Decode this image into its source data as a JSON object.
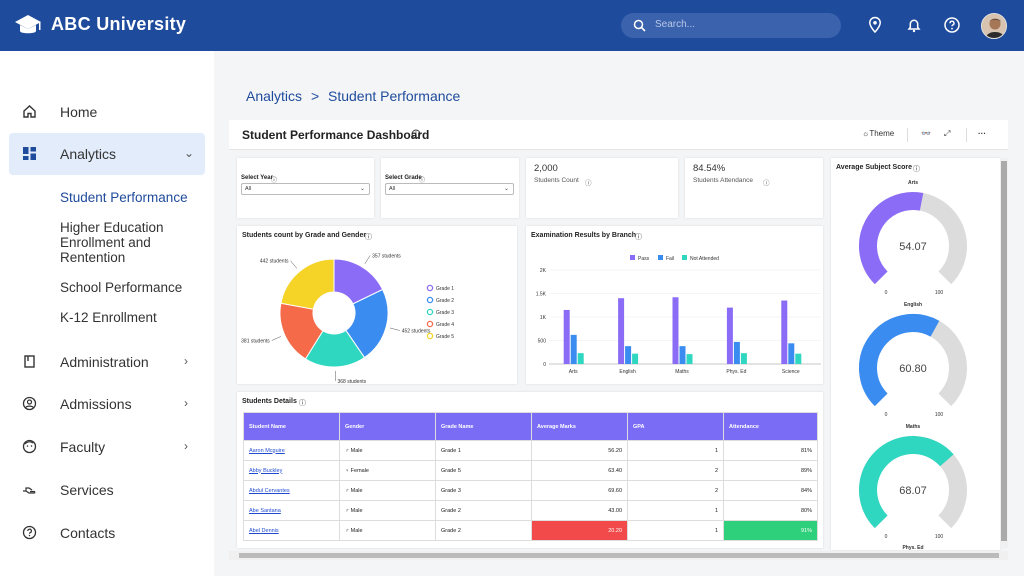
{
  "header": {
    "brand": "ABC University",
    "search_placeholder": "Search..."
  },
  "sidebar": {
    "items": [
      {
        "label": "Home"
      },
      {
        "label": "Analytics"
      },
      {
        "label": "Administration"
      },
      {
        "label": "Admissions"
      },
      {
        "label": "Faculty"
      },
      {
        "label": "Services"
      },
      {
        "label": "Contacts"
      }
    ],
    "analytics_sub": [
      "Student Performance",
      "Higher Education Enrollment and Rentention",
      "School Performance",
      "K-12 Enrollment"
    ]
  },
  "breadcrumb": {
    "parent": "Analytics",
    "sep": ">",
    "current": "Student Performance"
  },
  "dashboard": {
    "title": "Student Performance Dashboard",
    "theme_label": "Theme",
    "more": "···"
  },
  "filters": {
    "year": {
      "label": "Select Year",
      "value": "All"
    },
    "grade": {
      "label": "Select Grade",
      "value": "All"
    }
  },
  "kpis": {
    "count": {
      "value": "2,000",
      "label": "Students Count"
    },
    "attendance": {
      "value": "84.54%",
      "label": "Students Attendance"
    }
  },
  "pie": {
    "title": "Students count by Grade and Gender"
  },
  "bar": {
    "title": "Examination Results by Branch"
  },
  "gauges": {
    "title": "Average Subject Score"
  },
  "table": {
    "title": "Students Details",
    "headers": [
      "Student Name",
      "Gender",
      "Grade Name",
      "Average Marks",
      "GPA",
      "Attendance"
    ],
    "rows": [
      [
        "Aaron Mcguire",
        "Male",
        "Grade 1",
        "56.20",
        "1",
        "81%"
      ],
      [
        "Abby Buckley",
        "Female",
        "Grade 5",
        "63.40",
        "2",
        "89%"
      ],
      [
        "Abdul Cervantes",
        "Male",
        "Grade 3",
        "69.60",
        "2",
        "84%"
      ],
      [
        "Abe Santana",
        "Male",
        "Grade 2",
        "43.00",
        "1",
        "80%"
      ],
      [
        "Abel Dennis",
        "Male",
        "Grade 2",
        "20.20",
        "1",
        "91%"
      ]
    ]
  },
  "chart_data": [
    {
      "type": "pie",
      "title": "Students count by Grade and Gender",
      "categories": [
        "Grade 1",
        "Grade 2",
        "Grade 3",
        "Grade 4",
        "Grade 5"
      ],
      "values": [
        357,
        452,
        368,
        381,
        442
      ],
      "data_labels": [
        "357 students",
        "452 students",
        "368 students",
        "381 students",
        "442 students"
      ],
      "colors": [
        "#8b6cf6",
        "#3b8cf0",
        "#2fd6c0",
        "#f56b4a",
        "#f5d327"
      ],
      "legend": "right"
    },
    {
      "type": "bar",
      "title": "Examination Results by Branch",
      "categories": [
        "Arts",
        "English",
        "Maths",
        "Phys. Ed",
        "Science"
      ],
      "series": [
        {
          "name": "Pass",
          "values": [
            1150,
            1400,
            1420,
            1200,
            1350
          ],
          "color": "#8b6cf6"
        },
        {
          "name": "Fail",
          "values": [
            620,
            380,
            380,
            470,
            440
          ],
          "color": "#3b8cf0"
        },
        {
          "name": "Not Attended",
          "values": [
            230,
            220,
            210,
            230,
            220
          ],
          "color": "#2fd6c0"
        }
      ],
      "ylim": [
        0,
        2000
      ],
      "yticks": [
        "0",
        "500",
        "1K",
        "1.5K",
        "2K"
      ],
      "legend": "top"
    },
    {
      "type": "gauge",
      "title": "Average Subject Score",
      "gauges": [
        {
          "name": "Arts",
          "value": 54.07,
          "min": "0",
          "max": "100",
          "color": "#8b6cf6"
        },
        {
          "name": "English",
          "value": 60.8,
          "min": "0",
          "max": "100",
          "color": "#3b8cf0"
        },
        {
          "name": "Maths",
          "value": 68.07,
          "min": "0",
          "max": "100",
          "color": "#2fd6c0"
        }
      ],
      "next_label": "Phys. Ed"
    }
  ]
}
